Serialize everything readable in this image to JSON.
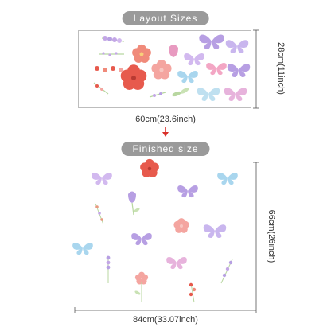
{
  "labels": {
    "layout_sizes": "Layout Sizes",
    "finished_size": "Finished size"
  },
  "layout_sheet": {
    "width_label": "60cm(23.6inch)",
    "height_label": "28cm(11inch)"
  },
  "finished": {
    "width_label": "84cm(33.07inch)",
    "height_label": "66cm(26inch)"
  },
  "colors": {
    "pill": "#9a9a9a",
    "arrow": "#d9302b",
    "butterfly_lilac": "#b79fe3",
    "butterfly_pink": "#f3a6c4",
    "butterfly_blue": "#a9d6ee",
    "flower_red": "#e75a4d",
    "flower_pink": "#f4a5a0",
    "leaf": "#b8d7a0"
  }
}
